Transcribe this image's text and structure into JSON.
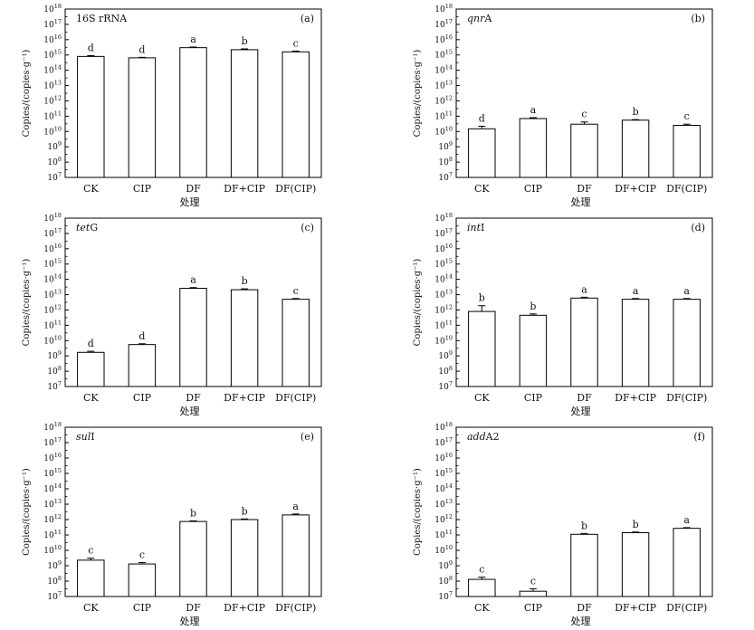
{
  "chart_data": [
    {
      "type": "bar",
      "panel_label": "(a)",
      "title": "16S rRNA",
      "title_italic_part": "",
      "title_plain_part": "16S rRNA",
      "xlabel": "处理",
      "ylabel": "Copies/(copies·g⁻¹)",
      "y_scale": "log",
      "ylim": [
        10000000.0,
        1e+18
      ],
      "y_ticks": [
        7,
        8,
        9,
        10,
        11,
        12,
        13,
        14,
        15,
        16,
        17,
        18
      ],
      "categories": [
        "CK",
        "CIP",
        "DF",
        "DF+CIP",
        "DF(CIP)"
      ],
      "values": [
        800000000000000.0,
        650000000000000.0,
        3000000000000000.0,
        2200000000000000.0,
        1600000000000000.0
      ],
      "error_upper": [
        900000000000000.0,
        700000000000000.0,
        3300000000000000.0,
        2500000000000000.0,
        1800000000000000.0
      ],
      "significance": [
        "d",
        "d",
        "a",
        "b",
        "c"
      ]
    },
    {
      "type": "bar",
      "panel_label": "(b)",
      "title": "qnrA",
      "title_italic_part": "qnr",
      "title_plain_part": "A",
      "xlabel": "处理",
      "ylabel": "Copies/(copies·g⁻¹)",
      "y_scale": "log",
      "ylim": [
        10000000.0,
        1e+18
      ],
      "y_ticks": [
        7,
        8,
        9,
        10,
        11,
        12,
        13,
        14,
        15,
        16,
        17,
        18
      ],
      "categories": [
        "CK",
        "CIP",
        "DF",
        "DF+CIP",
        "DF(CIP)"
      ],
      "values": [
        15000000000.0,
        70000000000.0,
        30000000000.0,
        55000000000.0,
        25000000000.0
      ],
      "error_upper": [
        22000000000.0,
        80000000000.0,
        42000000000.0,
        60000000000.0,
        30000000000.0
      ],
      "significance": [
        "d",
        "a",
        "c",
        "b",
        "c"
      ]
    },
    {
      "type": "bar",
      "panel_label": "(c)",
      "title": "tetG",
      "title_italic_part": "tet",
      "title_plain_part": "G",
      "xlabel": "处理",
      "ylabel": "Copies/(copies·g⁻¹)",
      "y_scale": "log",
      "ylim": [
        10000000.0,
        1e+18
      ],
      "y_ticks": [
        7,
        8,
        9,
        10,
        11,
        12,
        13,
        14,
        15,
        16,
        17,
        18
      ],
      "categories": [
        "CK",
        "CIP",
        "DF",
        "DF+CIP",
        "DF(CIP)"
      ],
      "values": [
        1700000000.0,
        5500000000.0,
        26000000000000.0,
        21000000000000.0,
        5000000000000.0
      ],
      "error_upper": [
        2000000000.0,
        6200000000.0,
        29000000000000.0,
        24000000000000.0,
        5600000000000.0
      ],
      "significance": [
        "d",
        "d",
        "a",
        "b",
        "c"
      ]
    },
    {
      "type": "bar",
      "panel_label": "(d)",
      "title": "intI",
      "title_italic_part": "int",
      "title_plain_part": "I",
      "xlabel": "处理",
      "ylabel": "Copies/(copies·g⁻¹)",
      "y_scale": "log",
      "ylim": [
        10000000.0,
        1e+18
      ],
      "y_ticks": [
        7,
        8,
        9,
        10,
        11,
        12,
        13,
        14,
        15,
        16,
        17,
        18
      ],
      "categories": [
        "CK",
        "CIP",
        "DF",
        "DF+CIP",
        "DF(CIP)"
      ],
      "values": [
        800000000000.0,
        450000000000.0,
        6000000000000.0,
        5000000000000.0,
        5000000000000.0
      ],
      "error_upper": [
        1900000000000.0,
        550000000000.0,
        6800000000000.0,
        5600000000000.0,
        5600000000000.0
      ],
      "significance": [
        "b",
        "b",
        "a",
        "a",
        "a"
      ]
    },
    {
      "type": "bar",
      "panel_label": "(e)",
      "title": "sulI",
      "title_italic_part": "sul",
      "title_plain_part": "I",
      "xlabel": "处理",
      "ylabel": "Copies/(copies·g⁻¹)",
      "y_scale": "log",
      "ylim": [
        10000000.0,
        1e+18
      ],
      "y_ticks": [
        7,
        8,
        9,
        10,
        11,
        12,
        13,
        14,
        15,
        16,
        17,
        18
      ],
      "categories": [
        "CK",
        "CIP",
        "DF",
        "DF+CIP",
        "DF(CIP)"
      ],
      "values": [
        2300000000.0,
        1300000000.0,
        750000000000.0,
        1000000000000.0,
        2000000000000.0
      ],
      "error_upper": [
        3100000000.0,
        1600000000.0,
        820000000000.0,
        1100000000000.0,
        2300000000000.0
      ],
      "significance": [
        "c",
        "c",
        "b",
        "b",
        "a"
      ]
    },
    {
      "type": "bar",
      "panel_label": "(f)",
      "title": "addA2",
      "title_italic_part": "add",
      "title_plain_part": "A2",
      "xlabel": "处理",
      "ylabel": "Copies/(copies·g⁻¹)",
      "y_scale": "log",
      "ylim": [
        10000000.0,
        1e+18
      ],
      "y_ticks": [
        7,
        8,
        9,
        10,
        11,
        12,
        13,
        14,
        15,
        16,
        17,
        18
      ],
      "categories": [
        "CK",
        "CIP",
        "DF",
        "DF+CIP",
        "DF(CIP)"
      ],
      "values": [
        130000000.0,
        22000000.0,
        110000000000.0,
        140000000000.0,
        270000000000.0
      ],
      "error_upper": [
        180000000.0,
        32000000.0,
        125000000000.0,
        155000000000.0,
        300000000000.0
      ],
      "significance": [
        "c",
        "c",
        "b",
        "b",
        "a"
      ]
    }
  ]
}
